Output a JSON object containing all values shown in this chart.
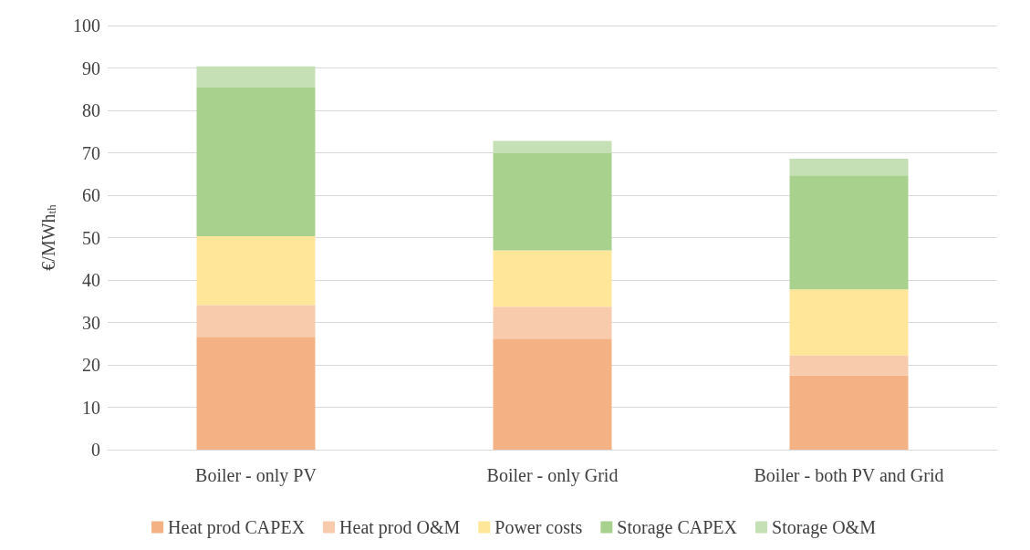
{
  "chart_data": {
    "type": "bar",
    "stacked": true,
    "ylabel": "€/MWh$_{th}$",
    "categories": [
      "Boiler - only PV",
      "Boiler - only Grid",
      "Boiler - both PV and Grid"
    ],
    "series": [
      {
        "name": "Heat prod CAPEX",
        "color": "#f4b183",
        "values": [
          26.6,
          26.2,
          17.5
        ]
      },
      {
        "name": "Heat prod O&M",
        "color": "#f8cbad",
        "values": [
          7.5,
          7.5,
          4.7
        ]
      },
      {
        "name": "Power costs",
        "color": "#ffe699",
        "values": [
          16.2,
          13.3,
          15.6
        ]
      },
      {
        "name": "Storage CAPEX",
        "color": "#a9d18e",
        "values": [
          35.1,
          22.9,
          26.9
        ]
      },
      {
        "name": "Storage O&M",
        "color": "#c5e0b4",
        "values": [
          5.0,
          2.9,
          3.9
        ]
      }
    ],
    "ylim": [
      0,
      100
    ],
    "yticks": [
      0,
      10,
      20,
      30,
      40,
      50,
      60,
      70,
      80,
      90,
      100
    ],
    "grid": "y",
    "legend": "bottom"
  }
}
